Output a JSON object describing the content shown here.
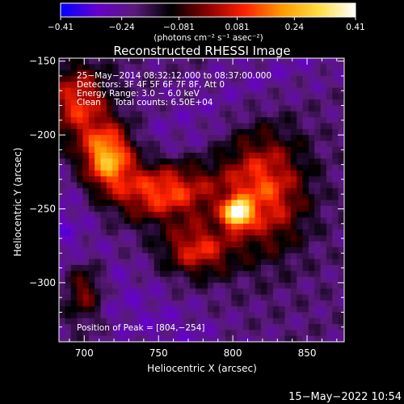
{
  "chart_data": {
    "type": "heatmap",
    "title": "Reconstructed RHESSI Image",
    "xlabel": "Heliocentric X (arcsec)",
    "ylabel": "Heliocentric Y (arcsec)",
    "xlim": [
      683,
      875
    ],
    "ylim": [
      -340,
      -148
    ],
    "x_ticks": [
      700,
      750,
      800,
      850
    ],
    "y_ticks": [
      -150,
      -200,
      -250,
      -300
    ],
    "x_tick_labels": [
      "700",
      "750",
      "800",
      "850"
    ],
    "y_tick_labels": [
      "−150",
      "−200",
      "−250",
      "−300"
    ],
    "colorbar": {
      "min": -0.41,
      "max": 0.41,
      "ticks": [
        -0.41,
        -0.24,
        -0.081,
        0.081,
        0.24,
        0.41
      ],
      "tick_labels": [
        "−0.41",
        "−0.24",
        "−0.081",
        "0.081",
        "0.24",
        "0.41"
      ],
      "unit_label": "(photons cm⁻² s⁻¹ asec⁻²)",
      "colors": [
        "#0000ff",
        "#6600cc",
        "#5a1a7a",
        "#000000",
        "#8b0000",
        "#ff2200",
        "#ff9900",
        "#ffdd44",
        "#ffffff"
      ]
    },
    "annotations": [
      "25−May−2014 08:32:12.000 to 08:37:00.000",
      "Detectors: 3F 4F 5F 6F 7F 8F, Att 0",
      "Energy Range: 3.0 − 6.0 keV",
      "Clean     Total counts: 6.50E+04"
    ],
    "peak_label": "Position of Peak = [804,−254]",
    "sources": [
      {
        "x": 716,
        "y": -215,
        "peak": 0.36,
        "sx": 12,
        "sy": 15
      },
      {
        "x": 803,
        "y": -253,
        "peak": 0.41,
        "sx": 6,
        "sy": 6
      },
      {
        "x": 820,
        "y": -238,
        "peak": 0.22,
        "sx": 20,
        "sy": 28
      },
      {
        "x": 752,
        "y": -238,
        "peak": 0.24,
        "sx": 24,
        "sy": 14
      },
      {
        "x": 696,
        "y": -178,
        "peak": 0.19,
        "sx": 14,
        "sy": 18
      },
      {
        "x": 776,
        "y": -278,
        "peak": 0.17,
        "sx": 16,
        "sy": 12
      },
      {
        "x": 700,
        "y": -305,
        "peak": 0.12,
        "sx": 9,
        "sy": 14
      }
    ],
    "background_level": -0.2,
    "date_stamp": "15−May−2022 10:54"
  }
}
